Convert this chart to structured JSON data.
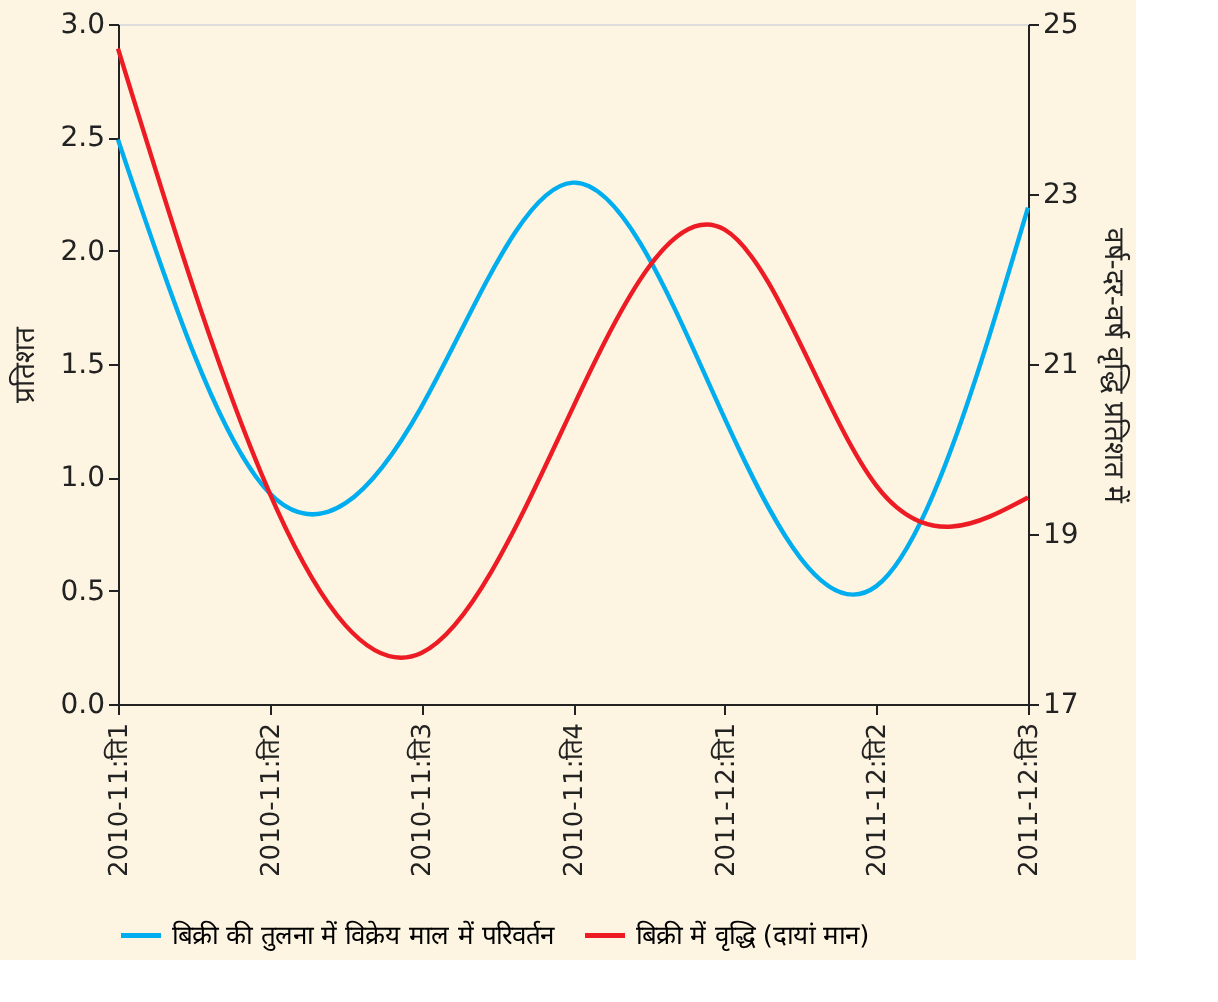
{
  "chart_data": {
    "type": "line",
    "ylabel": "प्रतिशत",
    "y2label": "वर्ष-दर-वर्ष वृद्धि प्रतिशत में",
    "categories": [
      "2010-11:ति1",
      "2010-11:ति2",
      "2010-11:ति3",
      "2010-11:ति4",
      "2011-12:ति1",
      "2011-12:ति2",
      "2011-12:ति3"
    ],
    "series": [
      {
        "name": "बिक्री की तुलना में विक्रेय माल में परिवर्तन",
        "color": "#00aeef",
        "values": [
          2.49,
          0.93,
          1.31,
          2.3,
          1.26,
          0.52,
          2.19
        ]
      },
      {
        "name": "बिक्री में वृद्धि (दायां मान)",
        "color": "#ed1c24",
        "axis": "y2",
        "values": [
          24.71,
          19.48,
          17.6,
          20.49,
          22.58,
          19.57,
          19.43
        ]
      }
    ],
    "ylim": [
      0,
      3
    ],
    "yticks": [
      {
        "value": 0,
        "label": "0.0"
      },
      {
        "value": 0.5,
        "label": "0.5"
      },
      {
        "value": 1,
        "label": "1.0"
      },
      {
        "value": 1.5,
        "label": "1.5"
      },
      {
        "value": 2,
        "label": "2.0"
      },
      {
        "value": 2.5,
        "label": "2.5"
      },
      {
        "value": 3,
        "label": "3.0"
      }
    ],
    "y2lim": [
      17,
      25
    ],
    "y2ticks": [
      17,
      19,
      21,
      23,
      25
    ],
    "grid": false,
    "legend": "bottom",
    "line_style": "solid",
    "marker": "none"
  }
}
